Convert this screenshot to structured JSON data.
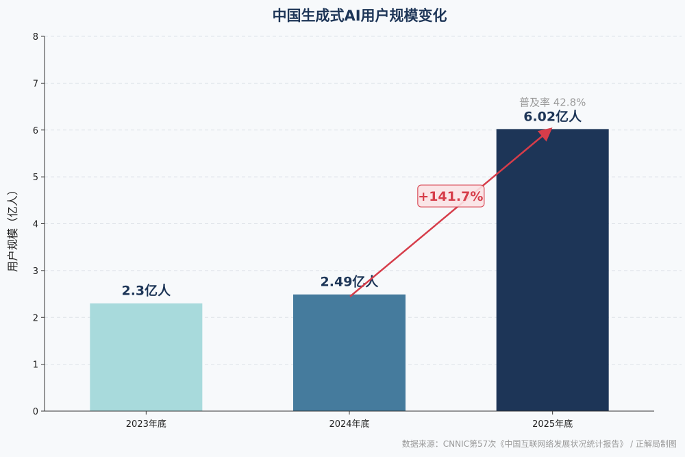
{
  "chart_data": {
    "type": "bar",
    "title": "中国生成式AI用户规模变化",
    "xlabel": "",
    "ylabel": "用户规模（亿人）",
    "ylim": [
      0,
      8
    ],
    "yticks": [
      0,
      1,
      2,
      3,
      4,
      5,
      6,
      7,
      8
    ],
    "grid": true,
    "categories": [
      "2023年底",
      "2024年底",
      "2025年底"
    ],
    "values": [
      2.3,
      2.49,
      6.02
    ],
    "data_labels": [
      "2.3亿人",
      "2.49亿人",
      "6.02亿人"
    ],
    "colors": [
      "#a8dadc",
      "#457b9d",
      "#1d3557"
    ],
    "annotations": {
      "growth_label": "+141.7%",
      "growth_color": "#d63d4a",
      "penetration_label": "普及率 42.8%"
    },
    "source": "数据来源：CNNIC第57次《中国互联网络发展状况统计报告》 / 正解局制图"
  }
}
